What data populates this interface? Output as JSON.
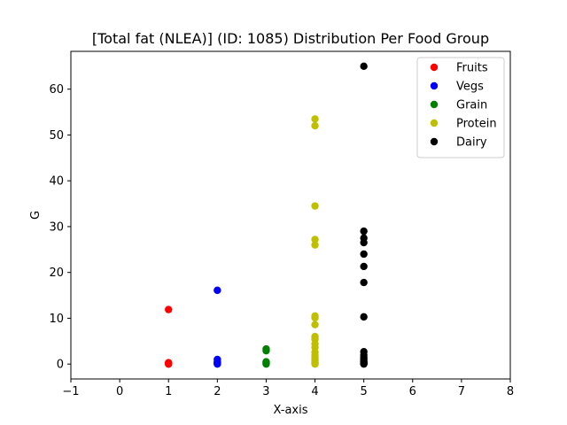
{
  "chart_data": {
    "type": "scatter",
    "title": "[Total fat (NLEA)] (ID: 1085) Distribution Per Food Group",
    "xlabel": "X-axis",
    "ylabel": "G",
    "xlim": [
      -1,
      8
    ],
    "ylim": [
      -3.25,
      68.25
    ],
    "xticks": [
      -1,
      0,
      1,
      2,
      3,
      4,
      5,
      6,
      7,
      8
    ],
    "yticks": [
      0,
      10,
      20,
      30,
      40,
      50,
      60
    ],
    "grid": false,
    "legend_position": "top-right",
    "series": [
      {
        "name": "Fruits",
        "color": "#ff0000",
        "x": [
          1,
          1,
          1,
          1,
          1,
          1
        ],
        "y": [
          11.9,
          0.3,
          0.2,
          0.1,
          0.0,
          0.0
        ]
      },
      {
        "name": "Vegs",
        "color": "#0000ff",
        "x": [
          2,
          2,
          2,
          2,
          2,
          2,
          2
        ],
        "y": [
          16.1,
          1.0,
          0.5,
          0.3,
          0.2,
          0.1,
          0.0
        ]
      },
      {
        "name": "Grain",
        "color": "#008000",
        "x": [
          3,
          3,
          3,
          3,
          3,
          3
        ],
        "y": [
          3.3,
          2.9,
          0.5,
          0.3,
          0.1,
          0.0
        ]
      },
      {
        "name": "Protein",
        "color": "#bfbf00",
        "x": [
          4,
          4,
          4,
          4,
          4,
          4,
          4,
          4,
          4,
          4,
          4,
          4,
          4,
          4,
          4,
          4,
          4,
          4,
          4
        ],
        "y": [
          53.5,
          52.0,
          34.5,
          27.2,
          26.0,
          10.5,
          10.1,
          8.6,
          6.0,
          5.4,
          4.4,
          3.6,
          2.6,
          1.9,
          1.3,
          0.8,
          0.4,
          0.2,
          0.0
        ]
      },
      {
        "name": "Dairy",
        "color": "#000000",
        "x": [
          5,
          5,
          5,
          5,
          5,
          5,
          5,
          5,
          5,
          5,
          5,
          5,
          5,
          5,
          5,
          5,
          5
        ],
        "y": [
          65.0,
          29.0,
          27.5,
          26.5,
          24.0,
          21.3,
          17.8,
          10.3,
          2.7,
          2.0,
          1.4,
          1.0,
          0.6,
          0.3,
          0.2,
          0.1,
          0.0
        ]
      }
    ]
  }
}
